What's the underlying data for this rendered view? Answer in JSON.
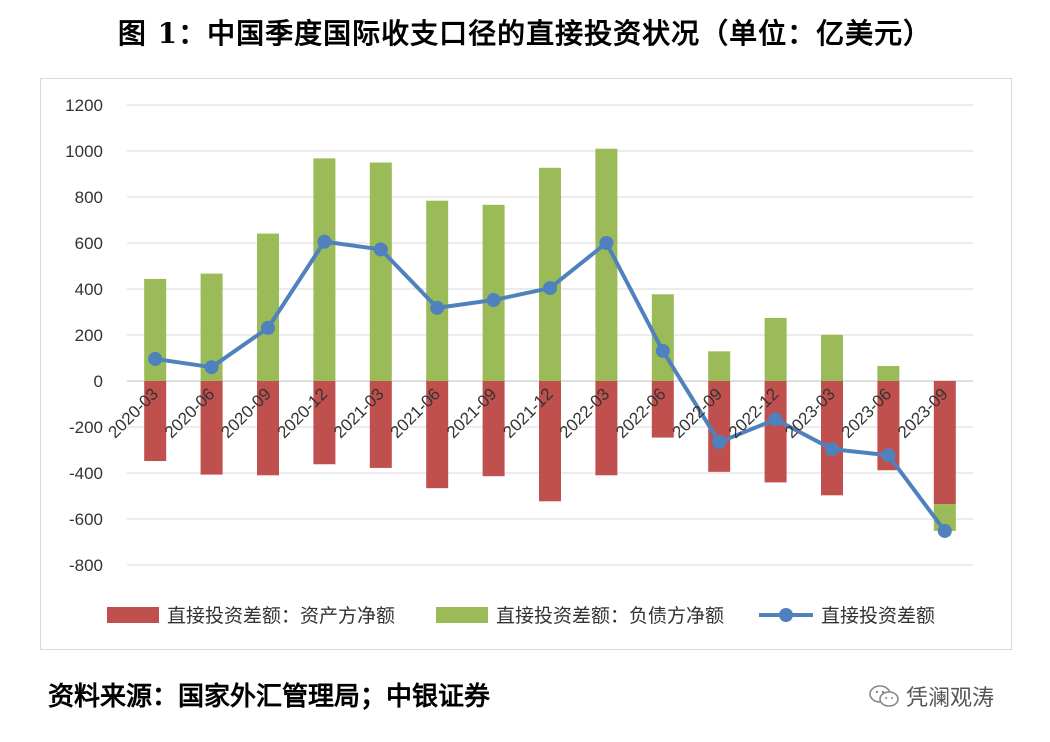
{
  "title": "图 1：中国季度国际收支口径的直接投资状况（单位：亿美元）",
  "source": "资料来源：国家外汇管理局；中银证券",
  "watermark": "凭澜观涛",
  "colors": {
    "assets": "#c0504d",
    "liabilities": "#9bbb59",
    "net": "#4f81bd",
    "grid": "#d9d9d9"
  },
  "chart_data": {
    "type": "bar",
    "categories": [
      "2020-03",
      "2020-06",
      "2020-09",
      "2020-12",
      "2021-03",
      "2021-06",
      "2021-09",
      "2021-12",
      "2022-03",
      "2022-06",
      "2022-09",
      "2022-12",
      "2023-03",
      "2023-06",
      "2023-09"
    ],
    "series": [
      {
        "name": "直接投资差额：资产方净额",
        "type": "bar",
        "values": [
          -348,
          -407,
          -410,
          -362,
          -378,
          -466,
          -414,
          -523,
          -410,
          -246,
          -395,
          -441,
          -497,
          -388,
          -535
        ]
      },
      {
        "name": "直接投资差额：负债方净额",
        "type": "bar",
        "values": [
          444,
          467,
          641,
          968,
          950,
          784,
          766,
          927,
          1010,
          377,
          129,
          274,
          201,
          65,
          -117
        ]
      },
      {
        "name": "直接投资差额",
        "type": "line",
        "values": [
          96,
          60,
          231,
          606,
          572,
          318,
          352,
          404,
          600,
          131,
          -266,
          -167,
          -296,
          -323,
          -652
        ]
      }
    ],
    "ylim": [
      -800,
      1200
    ],
    "yticks": [
      1200,
      1000,
      800,
      600,
      400,
      200,
      0,
      -200,
      -400,
      -600,
      -800
    ],
    "grid": true,
    "legend": "bottom"
  }
}
